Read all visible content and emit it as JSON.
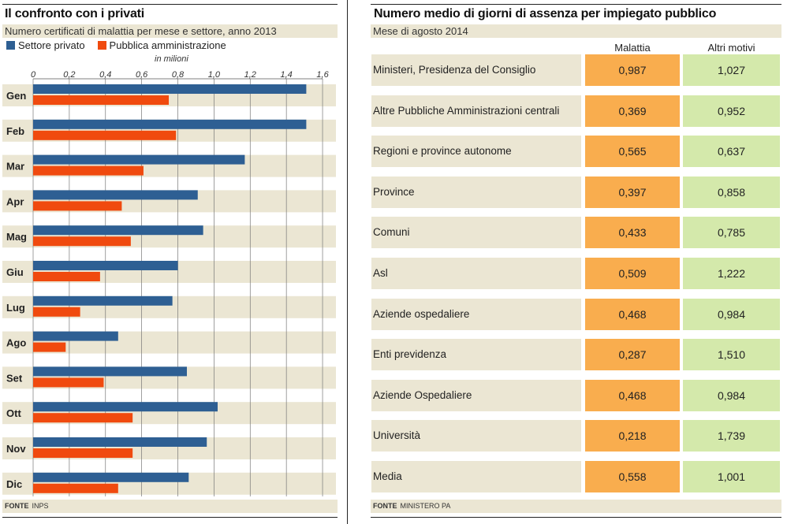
{
  "left_panel": {
    "title": "Il confronto con i privati",
    "subtitle": "Numero certificati di malattia per mese e settore, anno 2013",
    "source_label": "FONTE",
    "source_value": "INPS"
  },
  "right_panel": {
    "title": "Numero medio di giorni di assenza per impiegato pubblico",
    "subtitle": "Mese di agosto 2014",
    "column_headers": [
      "Malattia",
      "Altri motivi"
    ],
    "rows": [
      {
        "label": "Ministeri, Presidenza del Consiglio",
        "malattia": "0,987",
        "altri": "1,027"
      },
      {
        "label": "Altre Pubbliche Amministrazioni centrali",
        "malattia": "0,369",
        "altri": "0,952"
      },
      {
        "label": "Regioni e province autonome",
        "malattia": "0,565",
        "altri": "0,637"
      },
      {
        "label": "Province",
        "malattia": "0,397",
        "altri": "0,858"
      },
      {
        "label": "Comuni",
        "malattia": "0,433",
        "altri": "0,785"
      },
      {
        "label": "Asl",
        "malattia": "0,509",
        "altri": "1,222"
      },
      {
        "label": "Aziende ospedaliere",
        "malattia": "0,468",
        "altri": "0,984"
      },
      {
        "label": "Enti previdenza",
        "malattia": "0,287",
        "altri": "1,510"
      },
      {
        "label": "Aziende Ospedaliere",
        "malattia": "0,468",
        "altri": "0,984"
      },
      {
        "label": "Università",
        "malattia": "0,218",
        "altri": "1,739"
      },
      {
        "label": "Media",
        "malattia": "0,558",
        "altri": "1,001"
      }
    ],
    "source_label": "FONTE",
    "source_value": "MINISTERO PA"
  },
  "colors": {
    "privato": "#2e5f93",
    "pa": "#f04a0e",
    "band": "#ebe6d3",
    "malattia": "#f9ad4e",
    "altri": "#d4e9ab"
  },
  "chart_data": {
    "type": "bar",
    "orientation": "horizontal",
    "title": "Il confronto con i privati",
    "subtitle": "Numero certificati di malattia per mese e settore, anno 2013",
    "unit_label": "in milioni",
    "categories": [
      "Gen",
      "Feb",
      "Mar",
      "Apr",
      "Mag",
      "Giu",
      "Lug",
      "Ago",
      "Set",
      "Ott",
      "Nov",
      "Dic"
    ],
    "series": [
      {
        "name": "Settore privato",
        "values": [
          1.51,
          1.51,
          1.17,
          0.91,
          0.94,
          0.8,
          0.77,
          0.47,
          0.85,
          1.02,
          0.96,
          0.86
        ]
      },
      {
        "name": "Pubblica amministrazione",
        "values": [
          0.75,
          0.79,
          0.61,
          0.49,
          0.54,
          0.37,
          0.26,
          0.18,
          0.39,
          0.55,
          0.55,
          0.47
        ]
      }
    ],
    "xlim": [
      0,
      1.6
    ],
    "ticks": [
      0,
      0.2,
      0.4,
      0.6,
      0.8,
      1.0,
      1.2,
      1.4,
      1.6
    ],
    "tick_labels": [
      "0",
      "0,2",
      "0,4",
      "0,6",
      "0,8",
      "1,0",
      "1,2",
      "1,4",
      "1,6"
    ],
    "legend": "top-left"
  }
}
